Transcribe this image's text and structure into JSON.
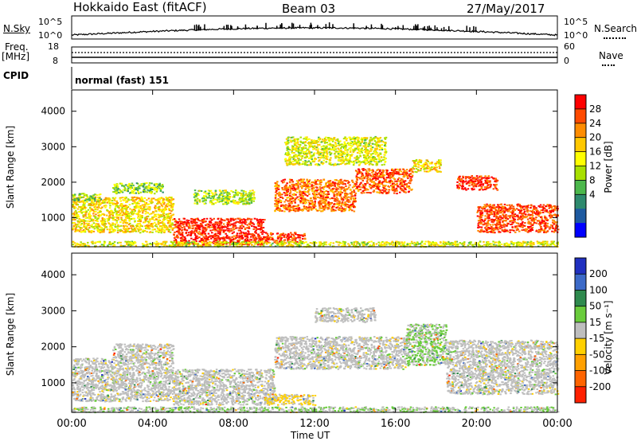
{
  "header": {
    "radar": "Hokkaido East (fitACF)",
    "beam": "Beam 03",
    "date": "27/May/2017"
  },
  "top_panels": {
    "nsky_label": "N.Sky",
    "nsky_ticks": [
      "10^5",
      "10^0"
    ],
    "nsearch_label": "N.Search",
    "nsearch_ticks": [
      "10^5",
      "10^0"
    ],
    "freq_label_1": "Freq.",
    "freq_label_2": "[MHz]",
    "freq_ticks": [
      "18",
      "8"
    ],
    "nave_label": "Nave",
    "nave_ticks": [
      "60",
      "0"
    ],
    "cpid_label": "CPID",
    "cpid_text": "normal (fast) 151"
  },
  "power_scale": {
    "title": "Power [dB]",
    "ticks": [
      "28",
      "24",
      "20",
      "16",
      "12",
      "8",
      "4"
    ],
    "colors": [
      "#ff0000",
      "#ff4a00",
      "#ff8c00",
      "#ffc800",
      "#ffff00",
      "#a8e000",
      "#4cb84c",
      "#2e8a6e",
      "#1e5aa0",
      "#0000ff"
    ]
  },
  "velocity_scale": {
    "title": "Velocity [m s⁻¹]",
    "ticks": [
      "200",
      "100",
      "50",
      "15",
      "-15",
      "-50",
      "-100",
      "-200"
    ],
    "colors": [
      "#2030c0",
      "#3c6ac8",
      "#2f8a4e",
      "#6acc3c",
      "#bebebe",
      "#ffd000",
      "#ffa000",
      "#ff6400",
      "#ff2000"
    ]
  },
  "chart_data": {
    "type": "heatmap",
    "x_ticks": [
      "00:00",
      "04:00",
      "08:00",
      "12:00",
      "16:00",
      "20:00",
      "00:00"
    ],
    "xlabel": "Time UT",
    "ylabel": "Slant Range [km]",
    "y_ticks": [
      1000,
      2000,
      3000,
      4000
    ],
    "xlim": [
      0,
      24
    ],
    "ylim": [
      180,
      4600
    ],
    "panels": [
      {
        "quantity": "Power",
        "units": "dB",
        "color_range": [
          0,
          30
        ],
        "regions": [
          {
            "t0": 0.0,
            "t1": 5.0,
            "r0": 600,
            "r1": 1600,
            "value": 18
          },
          {
            "t0": 0.0,
            "t1": 1.5,
            "r0": 1500,
            "r1": 1700,
            "value": 12
          },
          {
            "t0": 2.0,
            "t1": 4.5,
            "r0": 1700,
            "r1": 2000,
            "value": 13
          },
          {
            "t0": 5.0,
            "t1": 9.5,
            "r0": 250,
            "r1": 1000,
            "value": 28
          },
          {
            "t0": 6.0,
            "t1": 9.0,
            "r0": 1400,
            "r1": 1800,
            "value": 14
          },
          {
            "t0": 9.5,
            "t1": 11.5,
            "r0": 300,
            "r1": 600,
            "value": 26
          },
          {
            "t0": 10.0,
            "t1": 14.0,
            "r0": 1200,
            "r1": 2100,
            "value": 24
          },
          {
            "t0": 14.0,
            "t1": 16.8,
            "r0": 1700,
            "r1": 2400,
            "value": 25
          },
          {
            "t0": 16.8,
            "t1": 18.2,
            "r0": 2300,
            "r1": 2650,
            "value": 18
          },
          {
            "t0": 10.5,
            "t1": 15.5,
            "r0": 2500,
            "r1": 3300,
            "value": 16
          },
          {
            "t0": 19.0,
            "t1": 21.0,
            "r0": 1800,
            "r1": 2200,
            "value": 27
          },
          {
            "t0": 20.0,
            "t1": 24.0,
            "r0": 600,
            "r1": 1400,
            "value": 26
          },
          {
            "t0": 0.0,
            "t1": 24.0,
            "r0": 200,
            "r1": 350,
            "value": 16
          }
        ]
      },
      {
        "quantity": "Velocity",
        "units": "m s-1",
        "color_range": [
          -250,
          250
        ],
        "regions": [
          {
            "t0": 0.0,
            "t1": 5.0,
            "r0": 500,
            "r1": 1700,
            "value": 0
          },
          {
            "t0": 2.0,
            "t1": 5.0,
            "r0": 1700,
            "r1": 2100,
            "value": 0
          },
          {
            "t0": 5.0,
            "t1": 10.0,
            "r0": 400,
            "r1": 1400,
            "value": 0
          },
          {
            "t0": 9.5,
            "t1": 12.0,
            "r0": 400,
            "r1": 700,
            "value": -30
          },
          {
            "t0": 10.0,
            "t1": 16.5,
            "r0": 1400,
            "r1": 2300,
            "value": 0
          },
          {
            "t0": 16.5,
            "t1": 18.5,
            "r0": 1500,
            "r1": 2650,
            "value": 30
          },
          {
            "t0": 12.0,
            "t1": 15.0,
            "r0": 2700,
            "r1": 3100,
            "value": 0
          },
          {
            "t0": 18.5,
            "t1": 24.0,
            "r0": 700,
            "r1": 2200,
            "value": 0
          },
          {
            "t0": 0.0,
            "t1": 24.0,
            "r0": 200,
            "r1": 350,
            "value": 20
          }
        ]
      }
    ]
  }
}
